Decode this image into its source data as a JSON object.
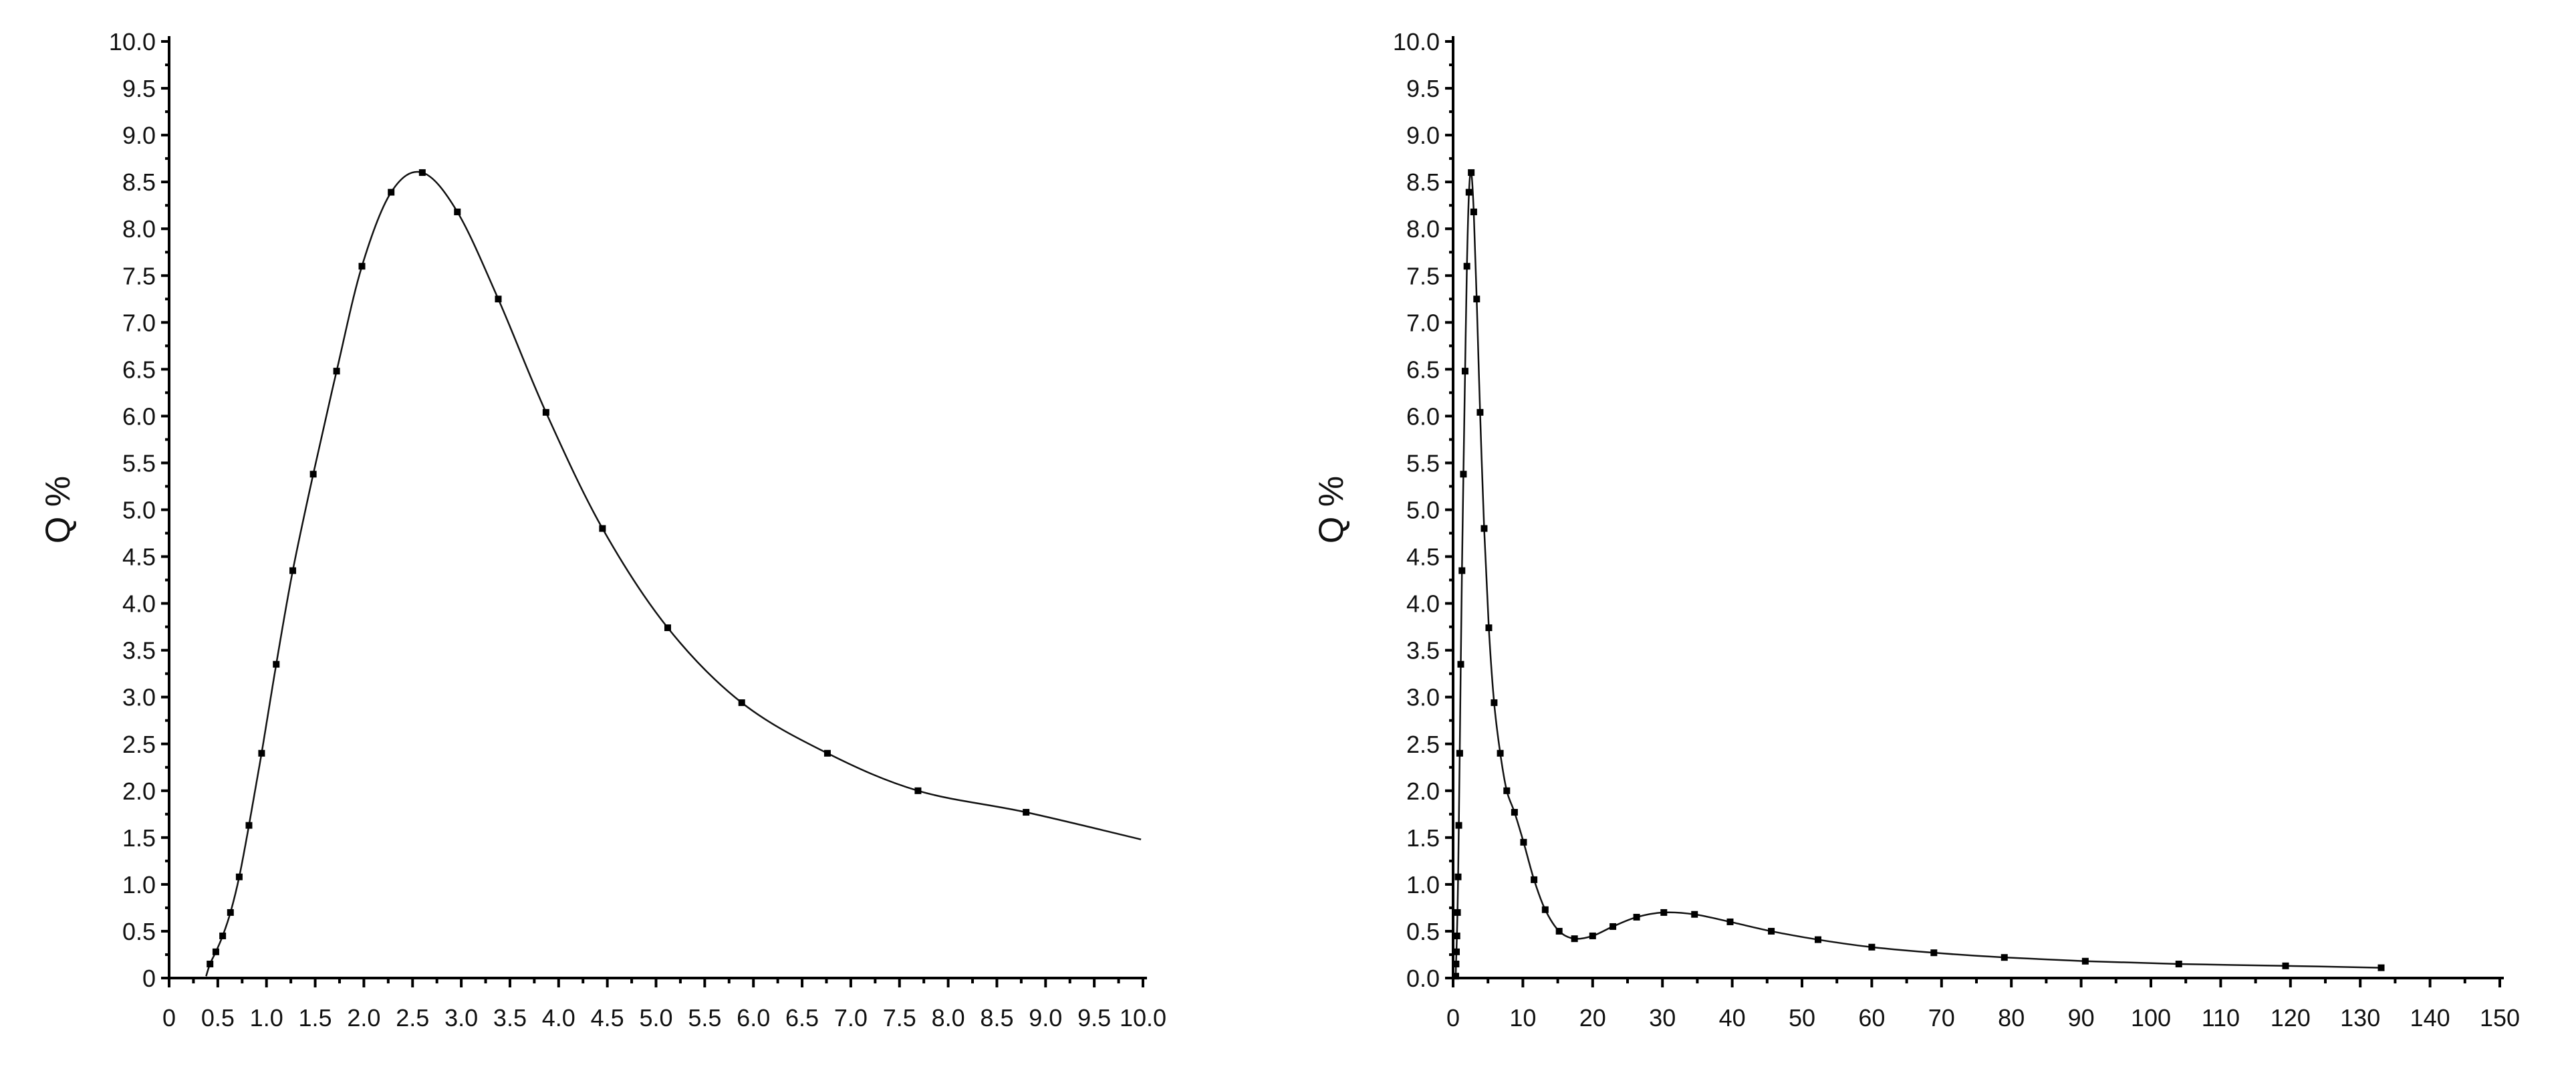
{
  "chart_data": [
    {
      "type": "line",
      "title": "",
      "xlabel": "",
      "ylabel": "Q %",
      "xlim": [
        0,
        10
      ],
      "ylim": [
        0,
        10
      ],
      "grid": false,
      "legend": "none",
      "x_ticks": [
        "0",
        "0.5",
        "1.0",
        "1.5",
        "2.0",
        "2.5",
        "3.0",
        "3.5",
        "4.0",
        "4.5",
        "5.0",
        "5.5",
        "6.0",
        "6.5",
        "7.0",
        "7.5",
        "8.0",
        "8.5",
        "9.0",
        "9.5",
        "10.0"
      ],
      "y_ticks": [
        "0",
        "0.5",
        "1.0",
        "1.5",
        "2.0",
        "2.5",
        "3.0",
        "3.5",
        "4.0",
        "4.5",
        "5.0",
        "5.5",
        "6.0",
        "6.5",
        "7.0",
        "7.5",
        "8.0",
        "8.5",
        "9.0",
        "9.5",
        "10.0"
      ],
      "series": [
        {
          "x": [
            0.38,
            0.42,
            0.48,
            0.55,
            0.63,
            0.72,
            0.82,
            0.95,
            1.1,
            1.27,
            1.48,
            1.72,
            1.98,
            2.28,
            2.6,
            2.96,
            3.38,
            3.87,
            4.45,
            5.12,
            5.88,
            6.76,
            7.69,
            8.8,
            9.98
          ],
          "y": [
            0.02,
            0.15,
            0.28,
            0.45,
            0.7,
            1.08,
            1.63,
            2.4,
            3.35,
            4.35,
            5.38,
            6.48,
            7.6,
            8.39,
            8.6,
            8.18,
            7.25,
            6.04,
            4.8,
            3.74,
            2.94,
            2.4,
            2.0,
            1.77,
            1.48
          ],
          "markers": [
            false,
            true,
            true,
            true,
            true,
            true,
            true,
            true,
            true,
            true,
            true,
            true,
            true,
            true,
            true,
            true,
            true,
            true,
            true,
            true,
            true,
            true,
            true,
            true,
            false
          ]
        }
      ]
    },
    {
      "type": "line",
      "title": "",
      "xlabel": "",
      "ylabel": "Q %",
      "xlim": [
        0,
        150
      ],
      "ylim": [
        0,
        10
      ],
      "grid": false,
      "legend": "none",
      "x_ticks": [
        "0",
        "10",
        "20",
        "30",
        "40",
        "50",
        "60",
        "70",
        "80",
        "90",
        "100",
        "110",
        "120",
        "130",
        "140",
        "150"
      ],
      "y_ticks": [
        "0.0",
        "0.5",
        "1.0",
        "1.5",
        "2.0",
        "2.5",
        "3.0",
        "3.5",
        "4.0",
        "4.5",
        "5.0",
        "5.5",
        "6.0",
        "6.5",
        "7.0",
        "7.5",
        "8.0",
        "8.5",
        "9.0",
        "9.5",
        "10.0"
      ],
      "series": [
        {
          "x": [
            0.38,
            0.42,
            0.48,
            0.55,
            0.63,
            0.72,
            0.82,
            0.95,
            1.1,
            1.27,
            1.48,
            1.72,
            1.98,
            2.28,
            2.6,
            2.96,
            3.38,
            3.87,
            4.45,
            5.12,
            5.88,
            6.76,
            7.69,
            8.8,
            10.1,
            11.6,
            13.2,
            15.2,
            17.4,
            20.0,
            22.9,
            26.3,
            30.2,
            34.6,
            39.7,
            45.6,
            52.3,
            60.0,
            68.9,
            79.0,
            90.6,
            104.0,
            119.3,
            133.0
          ],
          "y": [
            0.02,
            0.15,
            0.28,
            0.45,
            0.7,
            1.08,
            1.63,
            2.4,
            3.35,
            4.35,
            5.38,
            6.48,
            7.6,
            8.39,
            8.6,
            8.18,
            7.25,
            6.04,
            4.8,
            3.74,
            2.94,
            2.4,
            2.0,
            1.77,
            1.45,
            1.05,
            0.73,
            0.5,
            0.42,
            0.45,
            0.55,
            0.65,
            0.7,
            0.68,
            0.6,
            0.5,
            0.41,
            0.33,
            0.27,
            0.22,
            0.18,
            0.15,
            0.13,
            0.11
          ]
        }
      ]
    }
  ]
}
